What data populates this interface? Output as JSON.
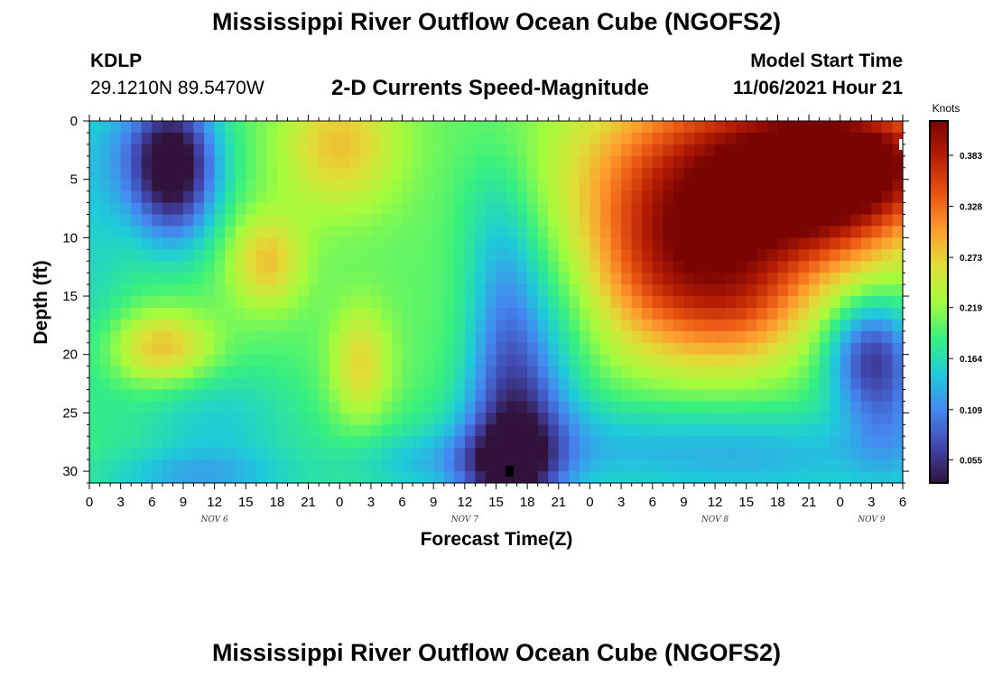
{
  "header": {
    "title": "Mississippi River Outflow Ocean Cube (NGOFS2)",
    "station": "KDLP",
    "coords": "29.1210N  89.5470W",
    "subtitle": "2-D Currents Speed-Magnitude",
    "model_start_label": "Model Start Time",
    "model_start_time": "11/06/2021 Hour 21"
  },
  "footer": {
    "title": "Mississippi River Outflow Ocean Cube (NGOFS2)"
  },
  "chart_data": {
    "type": "heatmap",
    "xlabel": "Forecast Time(Z)",
    "ylabel": "Depth (ft)",
    "x_range_hours": [
      0,
      78
    ],
    "x_ticks": [
      "0",
      "3",
      "6",
      "9",
      "12",
      "15",
      "18",
      "21",
      "0",
      "3",
      "6",
      "9",
      "12",
      "15",
      "18",
      "21",
      "0",
      "3",
      "6",
      "9",
      "12",
      "15",
      "18",
      "21",
      "0",
      "3",
      "6"
    ],
    "day_labels": [
      {
        "label": "NOV 6",
        "at_hour": 12
      },
      {
        "label": "NOV 7",
        "at_hour": 36
      },
      {
        "label": "NOV 8",
        "at_hour": 60
      },
      {
        "label": "NOV 9",
        "at_hour": 75
      }
    ],
    "y_range_ft": [
      0,
      31
    ],
    "y_inverted": true,
    "y_ticks": [
      0,
      5,
      10,
      15,
      20,
      25,
      30
    ],
    "colorbar": {
      "title": "Knots",
      "min": 0.03,
      "max": 0.42,
      "ticks": [
        "0.055",
        "0.109",
        "0.164",
        "0.219",
        "0.273",
        "0.328",
        "0.383"
      ],
      "colors": [
        "#30123b",
        "#4146ac",
        "#4686f1",
        "#1ecbda",
        "#37f07f",
        "#a4fc3c",
        "#e1dd37",
        "#fe9b2d",
        "#e95211",
        "#b71e03",
        "#7a0403"
      ]
    },
    "field": {
      "base": 0.2,
      "features": [
        {
          "t": 8,
          "d": 3,
          "st": 3,
          "sd": 4,
          "a": -0.14
        },
        {
          "t": 8,
          "d": 7,
          "st": 3,
          "sd": 4,
          "a": -0.06
        },
        {
          "t": 0,
          "d": 10,
          "st": 3,
          "sd": 10,
          "a": -0.04
        },
        {
          "t": 4,
          "d": 2,
          "st": 5,
          "sd": 4,
          "a": -0.03
        },
        {
          "t": 7,
          "d": 19.5,
          "st": 3.5,
          "sd": 2.2,
          "a": 0.09
        },
        {
          "t": 17,
          "d": 12,
          "st": 2.5,
          "sd": 2.8,
          "a": 0.08
        },
        {
          "t": 24,
          "d": 2,
          "st": 4,
          "sd": 4,
          "a": 0.08
        },
        {
          "t": 26,
          "d": 21,
          "st": 2,
          "sd": 3.5,
          "a": 0.07
        },
        {
          "t": 12,
          "d": 26,
          "st": 6,
          "sd": 4,
          "a": -0.05
        },
        {
          "t": 10,
          "d": 30.5,
          "st": 7,
          "sd": 1.5,
          "a": -0.05
        },
        {
          "t": 32,
          "d": 29.5,
          "st": 6,
          "sd": 2,
          "a": -0.04
        },
        {
          "t": 40,
          "d": 16,
          "st": 2.5,
          "sd": 6,
          "a": -0.06
        },
        {
          "t": 39,
          "d": 8,
          "st": 3,
          "sd": 5,
          "a": -0.03
        },
        {
          "t": 41,
          "d": 26,
          "st": 3.5,
          "sd": 6,
          "a": -0.12
        },
        {
          "t": 40,
          "d": 30,
          "st": 3,
          "sd": 2.5,
          "a": -0.07
        },
        {
          "t": 48,
          "d": 28,
          "st": 12,
          "sd": 3,
          "a": -0.05
        },
        {
          "t": 45,
          "d": 15,
          "st": 3,
          "sd": 6,
          "a": -0.02
        },
        {
          "t": 62,
          "d": 6,
          "st": 10,
          "sd": 6.5,
          "a": 0.22
        },
        {
          "t": 72,
          "d": 4,
          "st": 6,
          "sd": 4,
          "a": 0.18
        },
        {
          "t": 56,
          "d": 14,
          "st": 5,
          "sd": 5,
          "a": 0.09
        },
        {
          "t": 63,
          "d": 16,
          "st": 4,
          "sd": 4,
          "a": 0.06
        },
        {
          "t": 78,
          "d": 3,
          "st": 3,
          "sd": 3,
          "a": 0.04
        },
        {
          "t": 67,
          "d": 29,
          "st": 10,
          "sd": 3,
          "a": -0.05
        },
        {
          "t": 75,
          "d": 20,
          "st": 3,
          "sd": 3.5,
          "a": -0.13
        },
        {
          "t": 77,
          "d": 26,
          "st": 3,
          "sd": 4,
          "a": -0.05
        }
      ]
    }
  }
}
